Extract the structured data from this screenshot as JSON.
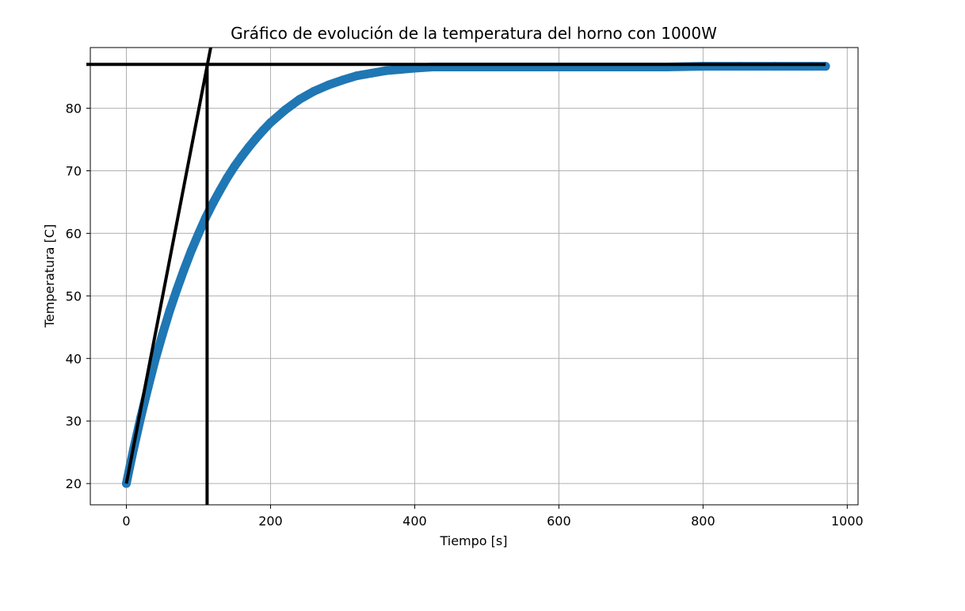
{
  "chart_data": {
    "type": "scatter",
    "title": "Gráfico de evolución de la temperatura del horno con 1000W",
    "xlabel": "Tiempo [s]",
    "ylabel": "Temperatura [C]",
    "xlim": [
      -50,
      1015
    ],
    "ylim": [
      16.6,
      89.7
    ],
    "xticks": [
      0,
      200,
      400,
      600,
      800,
      1000
    ],
    "yticks": [
      20,
      30,
      40,
      50,
      60,
      70,
      80
    ],
    "grid": true,
    "colors": {
      "series": "#1f77b4",
      "annotation": "#000000",
      "grid": "#b0b0b0"
    },
    "series": [
      {
        "x": [
          0,
          5,
          10,
          20,
          30,
          40,
          50,
          60,
          70,
          80,
          90,
          100,
          110,
          120,
          130,
          140,
          150,
          160,
          170,
          180,
          190,
          200,
          220,
          240,
          260,
          280,
          300,
          320,
          340,
          360,
          380,
          400,
          425,
          450,
          475,
          500,
          550,
          600,
          650,
          700,
          750,
          800,
          850,
          900,
          950,
          970
        ],
        "y": [
          20.0,
          22.8,
          25.5,
          30.6,
          35.3,
          39.8,
          43.8,
          47.6,
          51.0,
          54.2,
          57.2,
          59.9,
          62.5,
          64.8,
          66.9,
          68.9,
          70.7,
          72.3,
          73.8,
          75.2,
          76.5,
          77.7,
          79.7,
          81.4,
          82.7,
          83.7,
          84.5,
          85.2,
          85.6,
          86.0,
          86.2,
          86.4,
          86.6,
          86.6,
          86.6,
          86.6,
          86.6,
          86.6,
          86.6,
          86.6,
          86.6,
          86.7,
          86.7,
          86.7,
          86.7,
          86.7
        ]
      }
    ],
    "annotations": {
      "horizontal_line": {
        "y": 87.0,
        "x": [
          -50,
          970
        ]
      },
      "tangent_line": {
        "x": [
          0,
          117
        ],
        "y": [
          20.0,
          89.7
        ]
      },
      "vertical_line": {
        "x": 112,
        "y": [
          16.6,
          87.0
        ]
      }
    }
  }
}
